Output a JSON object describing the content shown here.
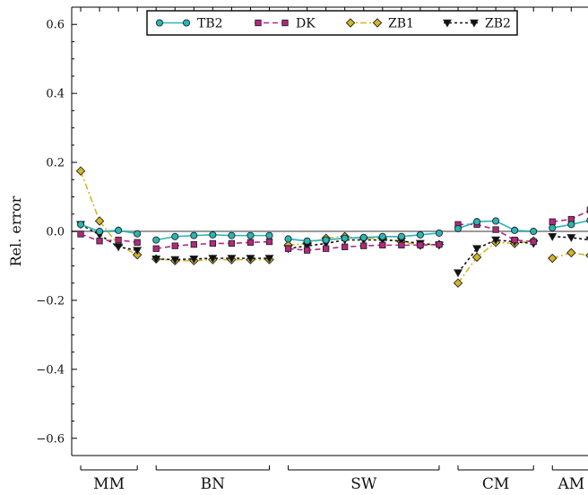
{
  "chart_data": {
    "type": "line",
    "ylabel": "Rel. error",
    "ylim": [
      -0.65,
      0.65
    ],
    "yticks": [
      {
        "value": 0.6,
        "label": "0.6"
      },
      {
        "value": 0.4,
        "label": "0.4"
      },
      {
        "value": 0.2,
        "label": "0.2"
      },
      {
        "value": 0.0,
        "label": "0.0"
      },
      {
        "value": -0.2,
        "label": "−0.2"
      },
      {
        "value": -0.4,
        "label": "−0.4"
      },
      {
        "value": -0.6,
        "label": "−0.6"
      }
    ],
    "reference_line": 0.0,
    "legend_position": "top",
    "groups": [
      {
        "label": "MM",
        "start": 1,
        "end": 4
      },
      {
        "label": "BN",
        "start": 5,
        "end": 11
      },
      {
        "label": "SW",
        "start": 12,
        "end": 20
      },
      {
        "label": "CM",
        "start": 21,
        "end": 25
      },
      {
        "label": "AM",
        "start": 26,
        "end": 28
      }
    ],
    "series": [
      {
        "name": "TB2",
        "color": "#2ab5b5",
        "marker": "circle",
        "dash": "solid",
        "segments": [
          {
            "x": [
              0,
              1,
              2,
              3
            ],
            "y": [
              0.02,
              0.0,
              0.003,
              -0.007
            ]
          },
          {
            "x": [
              4,
              5,
              6,
              7,
              8,
              9,
              10
            ],
            "y": [
              -0.025,
              -0.015,
              -0.012,
              -0.01,
              -0.012,
              -0.012,
              -0.012
            ]
          },
          {
            "x": [
              11,
              12,
              13,
              14,
              15,
              16,
              17,
              18,
              19
            ],
            "y": [
              -0.022,
              -0.028,
              -0.025,
              -0.02,
              -0.018,
              -0.015,
              -0.015,
              -0.01,
              -0.005
            ]
          },
          {
            "x": [
              20,
              21,
              22,
              23,
              24
            ],
            "y": [
              0.008,
              0.028,
              0.03,
              0.003,
              0.0
            ]
          },
          {
            "x": [
              25,
              26,
              27
            ],
            "y": [
              0.01,
              0.02,
              0.032
            ]
          }
        ]
      },
      {
        "name": "DK",
        "color": "#b5287f",
        "marker": "square",
        "dash": "dashed",
        "segments": [
          {
            "x": [
              0,
              1,
              2,
              3
            ],
            "y": [
              -0.008,
              -0.028,
              -0.025,
              -0.032
            ]
          },
          {
            "x": [
              4,
              5,
              6,
              7,
              8,
              9,
              10
            ],
            "y": [
              -0.05,
              -0.042,
              -0.038,
              -0.035,
              -0.035,
              -0.032,
              -0.03
            ]
          },
          {
            "x": [
              11,
              12,
              13,
              14,
              15,
              16,
              17,
              18,
              19
            ],
            "y": [
              -0.05,
              -0.055,
              -0.05,
              -0.045,
              -0.042,
              -0.04,
              -0.04,
              -0.04,
              -0.038
            ]
          },
          {
            "x": [
              20,
              21,
              22,
              23,
              24
            ],
            "y": [
              0.02,
              0.02,
              0.005,
              -0.025,
              -0.03
            ]
          },
          {
            "x": [
              25,
              26,
              27
            ],
            "y": [
              0.028,
              0.035,
              0.062
            ]
          }
        ]
      },
      {
        "name": "ZB1",
        "color": "#d4b52a",
        "marker": "diamond",
        "dash": "dashdot",
        "segments": [
          {
            "x": [
              0,
              1,
              2,
              3
            ],
            "y": [
              0.175,
              0.03,
              -0.04,
              -0.068
            ]
          },
          {
            "x": [
              4,
              5,
              6,
              7,
              8,
              9,
              10
            ],
            "y": [
              -0.08,
              -0.085,
              -0.085,
              -0.082,
              -0.082,
              -0.082,
              -0.082
            ]
          },
          {
            "x": [
              11,
              12,
              13,
              14,
              15,
              16,
              17,
              18,
              19
            ],
            "y": [
              -0.04,
              -0.035,
              -0.02,
              -0.015,
              -0.02,
              -0.02,
              -0.03,
              -0.04,
              -0.038
            ]
          },
          {
            "x": [
              20,
              21,
              22,
              23,
              24
            ],
            "y": [
              -0.15,
              -0.075,
              -0.032,
              -0.035,
              -0.028
            ]
          },
          {
            "x": [
              25,
              26,
              27
            ],
            "y": [
              -0.078,
              -0.062,
              -0.07
            ]
          }
        ]
      },
      {
        "name": "ZB2",
        "color": "#111111",
        "marker": "triangle-down",
        "dash": "dotted",
        "segments": [
          {
            "x": [
              0,
              1,
              2,
              3
            ],
            "y": [
              0.02,
              -0.01,
              -0.045,
              -0.055
            ]
          },
          {
            "x": [
              4,
              5,
              6,
              7,
              8,
              9,
              10
            ],
            "y": [
              -0.08,
              -0.082,
              -0.08,
              -0.078,
              -0.078,
              -0.078,
              -0.078
            ]
          },
          {
            "x": [
              11,
              12,
              13,
              14,
              15,
              16,
              17,
              18,
              19
            ],
            "y": [
              -0.05,
              -0.042,
              -0.035,
              -0.025,
              -0.025,
              -0.025,
              -0.028,
              -0.035,
              -0.04
            ]
          },
          {
            "x": [
              20,
              21,
              22,
              23,
              24
            ],
            "y": [
              -0.12,
              -0.05,
              -0.025,
              -0.03,
              -0.035
            ]
          },
          {
            "x": [
              25,
              26,
              27
            ],
            "y": [
              -0.015,
              -0.018,
              -0.025
            ]
          }
        ]
      }
    ]
  }
}
